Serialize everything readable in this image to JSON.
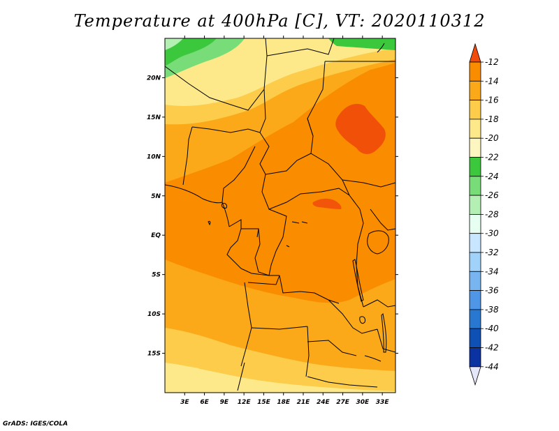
{
  "title": "Temperature at 400hPa [C], VT: 2020110312",
  "footer": "GrADS: IGES/COLA",
  "map": {
    "lon_labels": [
      "3E",
      "6E",
      "9E",
      "12E",
      "15E",
      "18E",
      "21E",
      "24E",
      "27E",
      "30E",
      "33E"
    ],
    "lat_labels": [
      "20N",
      "15N",
      "10N",
      "5N",
      "EQ",
      "5S",
      "10S",
      "15S"
    ],
    "lon_range": [
      0,
      35
    ],
    "lat_range": [
      -20,
      25
    ]
  },
  "colorbar": {
    "levels": [
      "-12",
      "-14",
      "-16",
      "-18",
      "-20",
      "-22",
      "-24",
      "-26",
      "-28",
      "-30",
      "-32",
      "-34",
      "-36",
      "-38",
      "-40",
      "-42",
      "-44"
    ],
    "colors": [
      "#f04b0a",
      "#fa8c00",
      "#fba918",
      "#fccc4a",
      "#fde98a",
      "#fdf6c0",
      "#3cc83c",
      "#78dc78",
      "#b4f0b4",
      "#e6fff0",
      "#c8e6ff",
      "#a0d2fa",
      "#78b4f0",
      "#5096e6",
      "#2878d2",
      "#0f50b4",
      "#0a32a0",
      "#000a78"
    ],
    "top_color": "#f04b0a",
    "bottom_color": "#e6e6fa"
  }
}
